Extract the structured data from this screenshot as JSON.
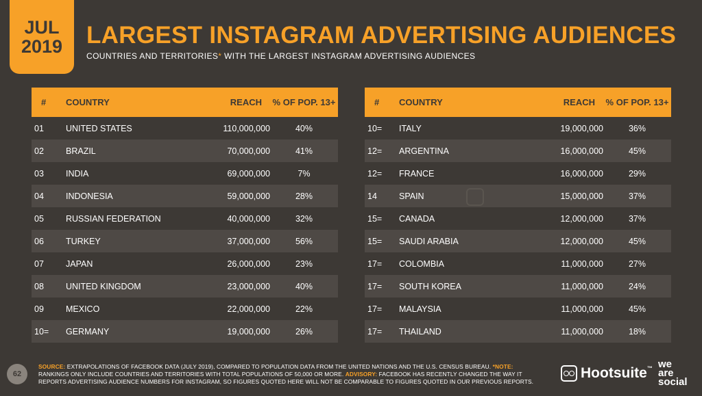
{
  "header": {
    "month": "JUL",
    "year": "2019",
    "title": "LARGEST INSTAGRAM ADVERTISING AUDIENCES",
    "subtitle_pre": "COUNTRIES AND TERRITORIES",
    "subtitle_ast": "*",
    "subtitle_post": " WITH THE LARGEST INSTAGRAM ADVERTISING AUDIENCES"
  },
  "columns": {
    "rank": "#",
    "country": "COUNTRY",
    "reach": "REACH",
    "pct": "% OF POP. 13+"
  },
  "left_rows": [
    {
      "rank": "01",
      "country": "UNITED STATES",
      "reach": "110,000,000",
      "pct": "40%"
    },
    {
      "rank": "02",
      "country": "BRAZIL",
      "reach": "70,000,000",
      "pct": "41%"
    },
    {
      "rank": "03",
      "country": "INDIA",
      "reach": "69,000,000",
      "pct": "7%"
    },
    {
      "rank": "04",
      "country": "INDONESIA",
      "reach": "59,000,000",
      "pct": "28%"
    },
    {
      "rank": "05",
      "country": "RUSSIAN FEDERATION",
      "reach": "40,000,000",
      "pct": "32%"
    },
    {
      "rank": "06",
      "country": "TURKEY",
      "reach": "37,000,000",
      "pct": "56%"
    },
    {
      "rank": "07",
      "country": "JAPAN",
      "reach": "26,000,000",
      "pct": "23%"
    },
    {
      "rank": "08",
      "country": "UNITED KINGDOM",
      "reach": "23,000,000",
      "pct": "40%"
    },
    {
      "rank": "09",
      "country": "MEXICO",
      "reach": "22,000,000",
      "pct": "22%"
    },
    {
      "rank": "10=",
      "country": "GERMANY",
      "reach": "19,000,000",
      "pct": "26%"
    }
  ],
  "right_rows": [
    {
      "rank": "10=",
      "country": "ITALY",
      "reach": "19,000,000",
      "pct": "36%"
    },
    {
      "rank": "12=",
      "country": "ARGENTINA",
      "reach": "16,000,000",
      "pct": "45%"
    },
    {
      "rank": "12=",
      "country": "FRANCE",
      "reach": "16,000,000",
      "pct": "29%"
    },
    {
      "rank": "14",
      "country": "SPAIN",
      "reach": "15,000,000",
      "pct": "37%"
    },
    {
      "rank": "15=",
      "country": "CANADA",
      "reach": "12,000,000",
      "pct": "37%"
    },
    {
      "rank": "15=",
      "country": "SAUDI ARABIA",
      "reach": "12,000,000",
      "pct": "45%"
    },
    {
      "rank": "17=",
      "country": "COLOMBIA",
      "reach": "11,000,000",
      "pct": "27%"
    },
    {
      "rank": "17=",
      "country": "SOUTH KOREA",
      "reach": "11,000,000",
      "pct": "24%"
    },
    {
      "rank": "17=",
      "country": "MALAYSIA",
      "reach": "11,000,000",
      "pct": "45%"
    },
    {
      "rank": "17=",
      "country": "THAILAND",
      "reach": "11,000,000",
      "pct": "18%"
    }
  ],
  "footer": {
    "page_number": "62",
    "source_label": "SOURCE:",
    "source_text": " EXTRAPOLATIONS OF FACEBOOK DATA (JULY 2019), COMPARED TO POPULATION DATA FROM THE UNITED NATIONS AND THE U.S. CENSUS BUREAU. ",
    "note_label": "*NOTE:",
    "note_text": " RANKINGS ONLY INCLUDE COUNTRIES AND TERRITORIES WITH TOTAL POPULATIONS OF 50,000 OR MORE. ",
    "advisory_label": "ADVISORY:",
    "advisory_text": " FACEBOOK HAS RECENTLY CHANGED THE WAY IT REPORTS ADVERTISING AUDIENCE NUMBERS FOR INSTAGRAM, SO FIGURES QUOTED HERE WILL NOT BE COMPARABLE TO FIGURES QUOTED IN OUR PREVIOUS REPORTS.",
    "hootsuite_name": "Hootsuite",
    "hootsuite_tm": "™",
    "was_line1": "we",
    "was_line2": "are",
    "was_line3": "social"
  },
  "colors": {
    "accent": "#f7a128",
    "background": "#3d3935",
    "row_shade": "#4e4945"
  },
  "icons": [
    "hootsuite-owl-icon"
  ]
}
